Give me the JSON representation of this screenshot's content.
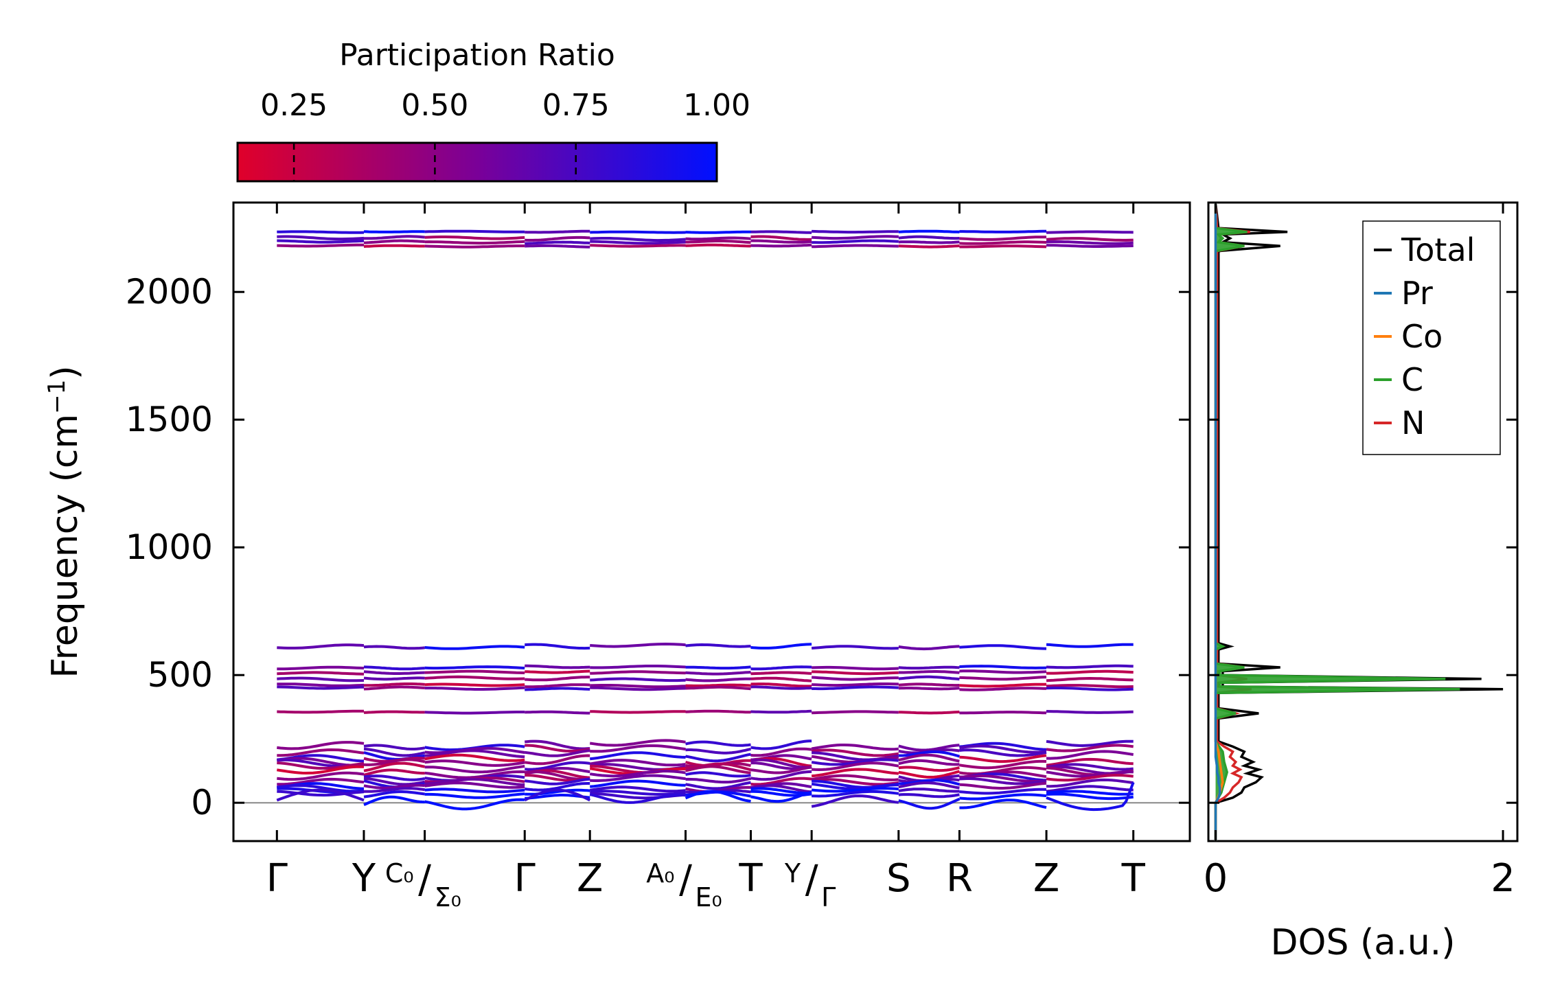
{
  "chart_data": {
    "type": "line",
    "colorbar": {
      "title": "Participation Ratio",
      "ticks": [
        0.25,
        0.5,
        0.75,
        1.0
      ],
      "tick_labels": [
        "0.25",
        "0.50",
        "0.75",
        "1.00"
      ],
      "range": [
        0.15,
        1.0
      ],
      "color_low": "#e0002a",
      "color_mid": "#7a0098",
      "color_high": "#0010ff"
    },
    "band_panel": {
      "ylabel": "Frequency (cm",
      "ylabel_sup": "−1",
      "ylabel_close": ")",
      "ylim": [
        -150,
        2350
      ],
      "yticks": [
        0,
        500,
        1000,
        1500,
        2000
      ],
      "ytick_labels": [
        "0",
        "500",
        "1000",
        "1500",
        "2000"
      ],
      "segments": [
        {
          "from": "Γ",
          "to": "Y",
          "start": 0,
          "end": 1
        },
        {
          "from": "Y",
          "to": "C₀",
          "start": 1,
          "end": 1.7
        },
        {
          "from": "Σ₀",
          "to": "Γ",
          "start": 1.7,
          "end": 2.85
        },
        {
          "from": "Γ",
          "to": "Z",
          "start": 2.85,
          "end": 3.6
        },
        {
          "from": "Z",
          "to": "A₀",
          "start": 3.6,
          "end": 4.7
        },
        {
          "from": "E₀",
          "to": "T",
          "start": 4.7,
          "end": 5.45
        },
        {
          "from": "T",
          "to": "Y",
          "start": 5.45,
          "end": 6.15
        },
        {
          "from": "Γ",
          "to": "S",
          "start": 6.15,
          "end": 7.15
        },
        {
          "from": "S",
          "to": "R",
          "start": 7.15,
          "end": 7.85
        },
        {
          "from": "R",
          "to": "Z",
          "start": 7.85,
          "end": 8.85
        },
        {
          "from": "Z",
          "to": "T",
          "start": 8.85,
          "end": 9.85
        }
      ],
      "kpoints": [
        {
          "pos": 0,
          "label": "Γ"
        },
        {
          "pos": 1,
          "label": "Y"
        },
        {
          "pos": 1.7,
          "label_top": "C₀",
          "label_bottom": "Σ₀"
        },
        {
          "pos": 2.85,
          "label": "Γ"
        },
        {
          "pos": 3.6,
          "label": "Z"
        },
        {
          "pos": 4.7,
          "label_top": "A₀",
          "label_bottom": "E₀"
        },
        {
          "pos": 5.45,
          "label": "T"
        },
        {
          "pos": 6.15,
          "label_top": "Y",
          "label_bottom": "Γ"
        },
        {
          "pos": 7.15,
          "label": "S"
        },
        {
          "pos": 7.85,
          "label": "R"
        },
        {
          "pos": 8.85,
          "label": "Z"
        },
        {
          "pos": 9.85,
          "label": "T"
        }
      ],
      "xlim": [
        -0.5,
        10.5
      ],
      "zero_line": 0,
      "bands": [
        {
          "freq": 2235,
          "amp": 3,
          "pr": 0.85
        },
        {
          "freq": 2210,
          "amp": 8,
          "pr": 0.55
        },
        {
          "freq": 2195,
          "amp": 6,
          "pr": 0.6
        },
        {
          "freq": 2180,
          "amp": 4,
          "pr": 0.45
        },
        {
          "freq": 612,
          "amp": 10,
          "pr": 0.8
        },
        {
          "freq": 530,
          "amp": 6,
          "pr": 0.75
        },
        {
          "freq": 510,
          "amp": 6,
          "pr": 0.45
        },
        {
          "freq": 485,
          "amp": 8,
          "pr": 0.55
        },
        {
          "freq": 460,
          "amp": 6,
          "pr": 0.4
        },
        {
          "freq": 448,
          "amp": 6,
          "pr": 0.65
        },
        {
          "freq": 355,
          "amp": 4,
          "pr": 0.5
        },
        {
          "freq": 225,
          "amp": 20,
          "pr": 0.7
        },
        {
          "freq": 205,
          "amp": 20,
          "pr": 0.55
        },
        {
          "freq": 185,
          "amp": 22,
          "pr": 0.75
        },
        {
          "freq": 165,
          "amp": 22,
          "pr": 0.4
        },
        {
          "freq": 150,
          "amp": 20,
          "pr": 0.6
        },
        {
          "freq": 135,
          "amp": 22,
          "pr": 0.45
        },
        {
          "freq": 120,
          "amp": 22,
          "pr": 0.35
        },
        {
          "freq": 105,
          "amp": 20,
          "pr": 0.65
        },
        {
          "freq": 90,
          "amp": 18,
          "pr": 0.5
        },
        {
          "freq": 75,
          "amp": 20,
          "pr": 0.8
        },
        {
          "freq": 60,
          "amp": 18,
          "pr": 0.7
        },
        {
          "freq": 45,
          "amp": 12,
          "pr": 0.9
        },
        {
          "freq": 30,
          "amp": 15,
          "pr": 0.95
        },
        {
          "freq": 10,
          "amp": 35,
          "pr": 0.95
        }
      ],
      "negative_dip": {
        "start": 8.85,
        "end": 9.85,
        "min_freq": -30
      }
    },
    "dos_panel": {
      "xlabel": "DOS (a.u.)",
      "xlim": [
        -0.05,
        2.1
      ],
      "xticks": [
        0,
        2
      ],
      "xtick_labels": [
        "0",
        "2"
      ],
      "legend_location": "top-right",
      "series": [
        {
          "name": "Total",
          "color": "#000000",
          "freq": [
            -150,
            0,
            20,
            40,
            60,
            80,
            100,
            115,
            130,
            145,
            160,
            180,
            200,
            220,
            240,
            330,
            350,
            370,
            430,
            445,
            455,
            470,
            485,
            500,
            515,
            530,
            545,
            600,
            612,
            625,
            2160,
            2180,
            2195,
            2210,
            2225,
            2235,
            2250,
            2350
          ],
          "dos": [
            0,
            0,
            0.12,
            0.18,
            0.2,
            0.28,
            0.32,
            0.22,
            0.3,
            0.2,
            0.26,
            0.18,
            0.2,
            0.12,
            0.02,
            0.02,
            0.3,
            0.02,
            0.02,
            2.0,
            0.05,
            0.05,
            1.85,
            0.05,
            0.05,
            0.45,
            0.02,
            0.02,
            0.1,
            0.02,
            0.02,
            0.45,
            0.05,
            0.1,
            0.05,
            0.5,
            0.02,
            0.0
          ]
        },
        {
          "name": "Pr",
          "color": "#1f77b4",
          "freq": [
            -150,
            0,
            20,
            40,
            60,
            80,
            100,
            120,
            140,
            180,
            2350
          ],
          "dos": [
            0,
            0,
            0.02,
            0.03,
            0.03,
            0.02,
            0.02,
            0.01,
            0.01,
            0.0,
            0.0
          ]
        },
        {
          "name": "Co",
          "color": "#ff7f0e",
          "freq": [
            -150,
            0,
            40,
            80,
            120,
            160,
            200,
            240,
            2350
          ],
          "dos": [
            0,
            0,
            0.03,
            0.05,
            0.04,
            0.03,
            0.02,
            0.0,
            0.0
          ]
        },
        {
          "name": "C",
          "color": "#2ca02c",
          "freq": [
            -150,
            0,
            40,
            80,
            120,
            160,
            200,
            240,
            330,
            350,
            370,
            430,
            445,
            455,
            470,
            485,
            500,
            515,
            530,
            545,
            600,
            612,
            625,
            2160,
            2180,
            2195,
            2210,
            2225,
            2235,
            2250,
            2350
          ],
          "dos": [
            0,
            0,
            0.04,
            0.06,
            0.08,
            0.06,
            0.05,
            0.0,
            0.0,
            0.14,
            0.0,
            0.0,
            1.7,
            0.03,
            0.03,
            1.6,
            0.03,
            0.03,
            0.2,
            0.0,
            0.0,
            0.05,
            0.0,
            0.0,
            0.2,
            0.02,
            0.05,
            0.02,
            0.22,
            0.0,
            0.0
          ]
        },
        {
          "name": "N",
          "color": "#d62728",
          "freq": [
            -150,
            0,
            20,
            40,
            60,
            80,
            100,
            115,
            130,
            145,
            160,
            180,
            200,
            220,
            240,
            330,
            350,
            370,
            430,
            445,
            455,
            470,
            485,
            500,
            515,
            530,
            545,
            600,
            612,
            625,
            2160,
            2180,
            2195,
            2210,
            2225,
            2235,
            2250,
            2350
          ],
          "dos": [
            0,
            0,
            0.06,
            0.1,
            0.12,
            0.16,
            0.18,
            0.12,
            0.17,
            0.12,
            0.14,
            0.1,
            0.12,
            0.06,
            0.01,
            0.01,
            0.14,
            0.01,
            0.01,
            0.25,
            0.02,
            0.02,
            0.22,
            0.02,
            0.02,
            0.2,
            0.01,
            0.01,
            0.04,
            0.01,
            0.01,
            0.2,
            0.02,
            0.04,
            0.02,
            0.24,
            0.01,
            0.0
          ]
        }
      ]
    }
  }
}
